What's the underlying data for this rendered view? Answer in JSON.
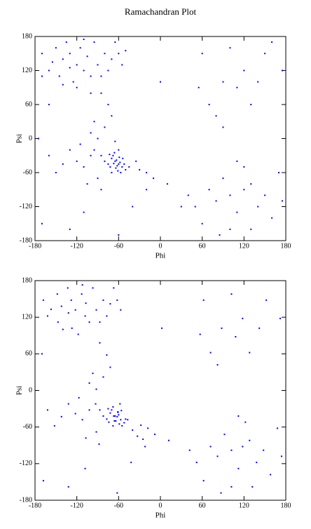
{
  "chart_data": [
    {
      "type": "scatter",
      "title": "Ramachandran Plot",
      "xlabel": "Phi",
      "ylabel": "Psi",
      "color": "#0000ff",
      "xlim": [
        -180,
        180
      ],
      "ylim": [
        -180,
        180
      ],
      "xticks": [
        -180,
        -120,
        -60,
        0,
        60,
        120,
        180
      ],
      "yticks": [
        -180,
        -120,
        -60,
        0,
        60,
        120,
        180
      ],
      "x": [
        -60,
        -65,
        -55,
        -70,
        -58,
        -62,
        -68,
        -50,
        -75,
        -63,
        -57,
        -72,
        -66,
        -54,
        -80,
        -60,
        -45,
        -85,
        -70,
        -52,
        -64,
        -59,
        -67,
        -61,
        -73,
        -100,
        -110,
        -95,
        -120,
        -90,
        -130,
        -140,
        -105,
        -30,
        -20,
        -10,
        -35,
        -150,
        -160,
        -115,
        -85,
        -90,
        -80,
        -100,
        -70,
        -75,
        -95,
        -85,
        -65,
        -120,
        -130,
        -110,
        -140,
        -100,
        -150,
        -125,
        -135,
        -90,
        -80,
        -70,
        -160,
        -115,
        -145,
        -105,
        -75,
        -60,
        -95,
        -170,
        -120,
        -65,
        -55,
        -155,
        -85,
        -130,
        -110,
        -100,
        -140,
        -170,
        -50,
        60,
        90,
        120,
        80,
        110,
        150,
        70,
        130,
        100,
        175,
        55,
        140,
        90,
        160,
        100,
        120,
        80,
        140,
        90,
        60,
        130,
        110,
        150,
        70,
        170,
        100,
        50,
        160,
        120,
        85,
        40,
        130,
        175,
        110,
        -170,
        -130,
        -60,
        -110,
        -20,
        0,
        10,
        -40,
        -175,
        -160,
        30
      ],
      "y": [
        -45,
        -40,
        -50,
        -35,
        -42,
        -48,
        -30,
        -55,
        -45,
        -38,
        -60,
        -50,
        -25,
        -35,
        -40,
        -20,
        -50,
        -30,
        -60,
        -45,
        -52,
        -33,
        -44,
        -57,
        -28,
        -30,
        -50,
        -20,
        -40,
        -70,
        -20,
        -45,
        -80,
        -55,
        -60,
        -70,
        -40,
        -60,
        -30,
        -10,
        -90,
        0,
        20,
        10,
        40,
        60,
        30,
        80,
        -5,
        130,
        150,
        120,
        140,
        110,
        160,
        100,
        170,
        130,
        150,
        140,
        120,
        160,
        110,
        145,
        120,
        150,
        170,
        150,
        90,
        170,
        130,
        135,
        110,
        125,
        175,
        80,
        95,
        110,
        155,
        150,
        100,
        120,
        40,
        90,
        150,
        60,
        60,
        160,
        120,
        90,
        100,
        20,
        170,
        -100,
        -90,
        -110,
        -120,
        -70,
        -150,
        -80,
        -130,
        -100,
        -90,
        -60,
        -160,
        -120,
        -140,
        -50,
        -170,
        -100,
        -160,
        -110,
        -40,
        -150,
        -160,
        -170,
        -130,
        -90,
        100,
        -80,
        -120,
        0,
        60,
        -120
      ]
    },
    {
      "type": "scatter",
      "xlabel": "Phi",
      "ylabel": "Psi",
      "color": "#0000ff",
      "xlim": [
        -180,
        180
      ],
      "ylim": [
        -180,
        180
      ],
      "xticks": [
        -180,
        -120,
        -60,
        0,
        60,
        120,
        180
      ],
      "yticks": [
        -180,
        -120,
        -60,
        0,
        60,
        120,
        180
      ],
      "x": [
        -62,
        -67,
        -57,
        -72,
        -60,
        -64,
        -70,
        -52,
        -77,
        -61,
        -55,
        -74,
        -68,
        -56,
        -82,
        -58,
        -47,
        -87,
        -68,
        -50,
        -66,
        -61,
        -65,
        -59,
        -75,
        -102,
        -112,
        -93,
        -122,
        -92,
        -132,
        -142,
        -107,
        -28,
        -18,
        -8,
        -33,
        -152,
        -162,
        -117,
        -88,
        -40,
        -25,
        -92,
        -82,
        -102,
        -72,
        -77,
        -97,
        -87,
        -122,
        -128,
        -108,
        -142,
        -102,
        -148,
        -127,
        -133,
        -92,
        -82,
        -72,
        -162,
        -113,
        -147,
        -107,
        -77,
        -62,
        -97,
        -168,
        -118,
        -67,
        -57,
        -157,
        -87,
        -132,
        -112,
        -170,
        -140,
        62,
        88,
        118,
        82,
        108,
        152,
        72,
        128,
        102,
        172,
        57,
        142,
        102,
        118,
        82,
        138,
        92,
        62,
        128,
        112,
        148,
        72,
        168,
        102,
        52,
        158,
        122,
        87,
        42,
        132,
        174,
        112,
        -168,
        -132,
        -62,
        -108,
        -22,
        2,
        12,
        -42
      ],
      "y": [
        -43,
        -42,
        -48,
        -37,
        -40,
        -50,
        -32,
        -53,
        -47,
        -36,
        -58,
        -52,
        -27,
        -33,
        -42,
        -22,
        -48,
        -32,
        -58,
        -47,
        -50,
        -35,
        -42,
        -55,
        -30,
        -32,
        -48,
        -22,
        -38,
        -68,
        -22,
        -43,
        -78,
        -57,
        -62,
        -72,
        -75,
        -58,
        -32,
        -12,
        -88,
        -65,
        -80,
        2,
        22,
        12,
        38,
        58,
        28,
        78,
        132,
        148,
        122,
        138,
        112,
        158,
        102,
        168,
        132,
        148,
        142,
        122,
        158,
        112,
        143,
        122,
        148,
        168,
        148,
        92,
        168,
        132,
        133,
        112,
        127,
        173,
        60,
        100,
        148,
        102,
        118,
        42,
        88,
        148,
        62,
        62,
        158,
        118,
        92,
        102,
        -98,
        -92,
        -108,
        -118,
        -72,
        -148,
        -82,
        -128,
        -98,
        -92,
        -62,
        -158,
        -118,
        -138,
        -52,
        -168,
        -98,
        -158,
        -108,
        -42,
        -148,
        -158,
        -168,
        -128,
        -92,
        102,
        -82,
        -118
      ]
    }
  ]
}
